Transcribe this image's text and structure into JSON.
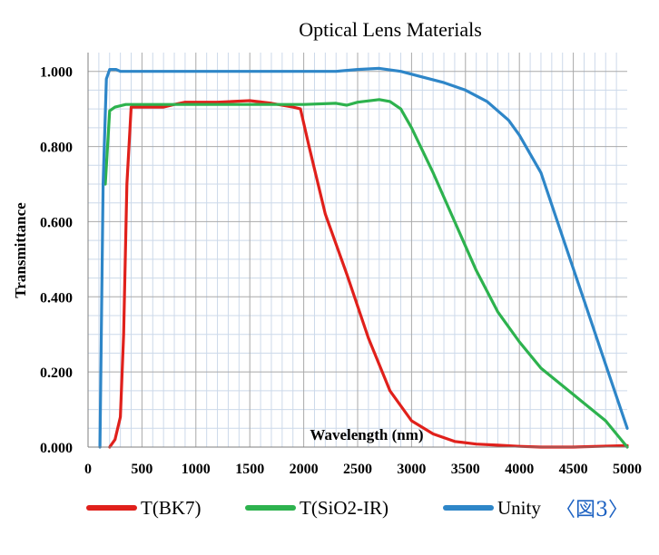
{
  "chart_data": {
    "type": "line",
    "title": "Optical Lens Materials",
    "xlabel": "Wavelength (nm)",
    "ylabel": "Transmittance",
    "xlim": [
      0,
      5000
    ],
    "ylim": [
      0,
      1.05
    ],
    "x_ticks": [
      "0",
      "500",
      "1000",
      "1500",
      "2000",
      "2500",
      "3000",
      "3500",
      "4000",
      "4500",
      "5000"
    ],
    "y_ticks": [
      "0.000",
      "0.200",
      "0.400",
      "0.600",
      "0.800",
      "1.000"
    ],
    "grid": true,
    "legend_position": "bottom",
    "series": [
      {
        "name": "T(BK7)",
        "color": "#e0201b",
        "points": [
          [
            200,
            0.0
          ],
          [
            250,
            0.02
          ],
          [
            300,
            0.08
          ],
          [
            330,
            0.3
          ],
          [
            360,
            0.7
          ],
          [
            400,
            0.905
          ],
          [
            500,
            0.905
          ],
          [
            700,
            0.905
          ],
          [
            800,
            0.912
          ],
          [
            900,
            0.918
          ],
          [
            1200,
            0.918
          ],
          [
            1500,
            0.922
          ],
          [
            1700,
            0.915
          ],
          [
            1900,
            0.905
          ],
          [
            1970,
            0.9
          ],
          [
            2050,
            0.8
          ],
          [
            2200,
            0.62
          ],
          [
            2400,
            0.46
          ],
          [
            2600,
            0.29
          ],
          [
            2800,
            0.15
          ],
          [
            3000,
            0.07
          ],
          [
            3200,
            0.035
          ],
          [
            3400,
            0.015
          ],
          [
            3600,
            0.008
          ],
          [
            3800,
            0.005
          ],
          [
            4000,
            0.002
          ],
          [
            4200,
            0.0
          ],
          [
            4500,
            0.0
          ],
          [
            5000,
            0.004
          ]
        ]
      },
      {
        "name": "T(SiO2-IR)",
        "color": "#2db24e",
        "points": [
          [
            160,
            0.7
          ],
          [
            200,
            0.895
          ],
          [
            250,
            0.905
          ],
          [
            350,
            0.912
          ],
          [
            500,
            0.912
          ],
          [
            1000,
            0.912
          ],
          [
            1500,
            0.912
          ],
          [
            2000,
            0.912
          ],
          [
            2300,
            0.915
          ],
          [
            2400,
            0.91
          ],
          [
            2500,
            0.918
          ],
          [
            2700,
            0.925
          ],
          [
            2800,
            0.92
          ],
          [
            2900,
            0.9
          ],
          [
            3000,
            0.85
          ],
          [
            3200,
            0.73
          ],
          [
            3400,
            0.6
          ],
          [
            3600,
            0.47
          ],
          [
            3800,
            0.36
          ],
          [
            4000,
            0.28
          ],
          [
            4200,
            0.21
          ],
          [
            4500,
            0.14
          ],
          [
            4800,
            0.07
          ],
          [
            5000,
            0.0
          ]
        ]
      },
      {
        "name": "Unity",
        "color": "#2e86c8",
        "points": [
          [
            110,
            0.0
          ],
          [
            140,
            0.7
          ],
          [
            170,
            0.98
          ],
          [
            200,
            1.005
          ],
          [
            260,
            1.005
          ],
          [
            300,
            1.0
          ],
          [
            500,
            1.0
          ],
          [
            1000,
            1.0
          ],
          [
            1500,
            1.0
          ],
          [
            2000,
            1.0
          ],
          [
            2300,
            1.0
          ],
          [
            2500,
            1.005
          ],
          [
            2700,
            1.008
          ],
          [
            2900,
            1.0
          ],
          [
            3100,
            0.985
          ],
          [
            3300,
            0.97
          ],
          [
            3500,
            0.95
          ],
          [
            3700,
            0.92
          ],
          [
            3900,
            0.87
          ],
          [
            4000,
            0.83
          ],
          [
            4200,
            0.73
          ],
          [
            4400,
            0.56
          ],
          [
            4600,
            0.39
          ],
          [
            4800,
            0.22
          ],
          [
            5000,
            0.05
          ]
        ]
      }
    ]
  },
  "legend": {
    "items": [
      {
        "label": "T(BK7)",
        "color": "#e0201b"
      },
      {
        "label": "T(SiO2-IR)",
        "color": "#2db24e"
      },
      {
        "label": "Unity",
        "color": "#2e86c8"
      }
    ],
    "figure_tag": "〈図3〉"
  }
}
